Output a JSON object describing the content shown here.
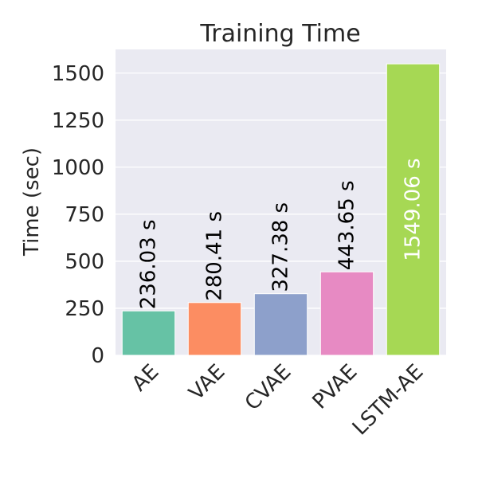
{
  "chart_data": {
    "type": "bar",
    "title": "Training Time",
    "xlabel": "",
    "ylabel": "Time (sec)",
    "categories": [
      "AE",
      "VAE",
      "CVAE",
      "PVAE",
      "LSTM-AE"
    ],
    "values": [
      236.03,
      280.41,
      327.38,
      443.65,
      1549.06
    ],
    "data_labels": [
      "236.03 s",
      "280.41 s",
      "327.38 s",
      "443.65 s",
      "1549.06 s"
    ],
    "colors": [
      "#66c2a5",
      "#fc8d62",
      "#8da0cb",
      "#e78ac3",
      "#a6d854"
    ],
    "yticks": [
      0,
      250,
      500,
      750,
      1000,
      1250,
      1500
    ],
    "ytick_labels": [
      "0",
      "250",
      "500",
      "750",
      "1000",
      "1250",
      "1500"
    ],
    "ylim": [
      0,
      1626
    ],
    "grid": true,
    "background_color": "#eaeaf2",
    "grid_color": "#ffffff"
  }
}
